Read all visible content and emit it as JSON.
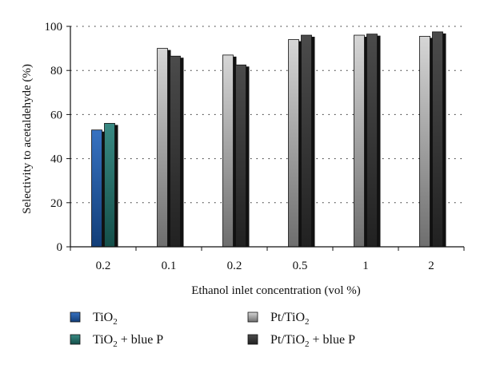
{
  "chart_data": {
    "type": "bar",
    "categories": [
      "0.2",
      "0.1",
      "0.2",
      "0.5",
      "1",
      "2"
    ],
    "series": [
      {
        "name": "TiO2",
        "label_main": "TiO",
        "label_sub": "2",
        "label_rest": "",
        "color": "#1c5fb8",
        "values": [
          53,
          null,
          null,
          null,
          null,
          null
        ]
      },
      {
        "name": "TiO2 + blue P",
        "label_main": "TiO",
        "label_sub": "2",
        "label_rest": " + blue P",
        "color": "#1e7a72",
        "values": [
          56,
          null,
          null,
          null,
          null,
          null
        ]
      },
      {
        "name": "Pt/TiO2",
        "label_main": "Pt/TiO",
        "label_sub": "2",
        "label_rest": "",
        "color": "#c8c8c8",
        "values": [
          null,
          90,
          87,
          94,
          96,
          95.5
        ]
      },
      {
        "name": "Pt/TiO2 + blue P",
        "label_main": "Pt/TiO",
        "label_sub": "2",
        "label_rest": " + blue P",
        "color": "#333333",
        "values": [
          null,
          86.5,
          82.5,
          96,
          96.5,
          97.5
        ]
      }
    ],
    "xlabel": "Ethanol inlet concentration (vol %)",
    "ylabel": "Selectivity to acetaldehyde (%)",
    "ylim": [
      0,
      100
    ],
    "yticks": [
      0,
      20,
      40,
      60,
      80,
      100
    ],
    "grid": "dotted horizontal",
    "legend_placement": "bottom"
  }
}
